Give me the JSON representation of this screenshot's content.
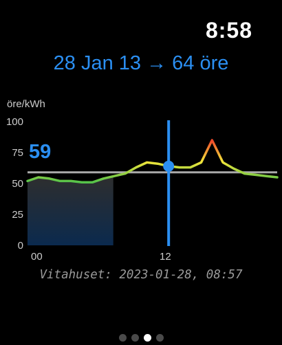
{
  "status": {
    "time": "8:58"
  },
  "headline": "28 Jan 13 → 64 öre",
  "current_value": "59",
  "source_text": "Vitahuset: 2023-01-28, 08:57",
  "pager": {
    "count": 4,
    "active_index": 2
  },
  "colors": {
    "accent": "#2b8ff2",
    "reference_line": "#aaaaaa",
    "low": "#55c24a",
    "mid": "#f2e53a",
    "high": "#f04a2a"
  },
  "chart_data": {
    "type": "line",
    "ylabel": "öre/kWh",
    "ylim": [
      0,
      100
    ],
    "y_ticks": [
      "0",
      "25",
      "50",
      "75",
      "100"
    ],
    "y_tick_values": [
      0,
      25,
      50,
      75,
      100
    ],
    "x_ticks": [
      "00",
      "12"
    ],
    "x_tick_values": [
      0,
      12
    ],
    "xlim": [
      0,
      23
    ],
    "x": [
      0,
      1,
      2,
      3,
      4,
      5,
      6,
      7,
      8,
      9,
      10,
      11,
      12,
      13,
      14,
      15,
      16,
      17,
      18,
      19,
      20,
      21,
      22,
      23
    ],
    "values": [
      52,
      55,
      54,
      52,
      52,
      51,
      51,
      54,
      56,
      58,
      63,
      67,
      66,
      64,
      63,
      63,
      67,
      85,
      67,
      62,
      58,
      57,
      56,
      55
    ],
    "reference_value": 59,
    "selected_x": 13,
    "selected_value": 64,
    "elapsed_until_x": 7.9,
    "grid": false
  }
}
